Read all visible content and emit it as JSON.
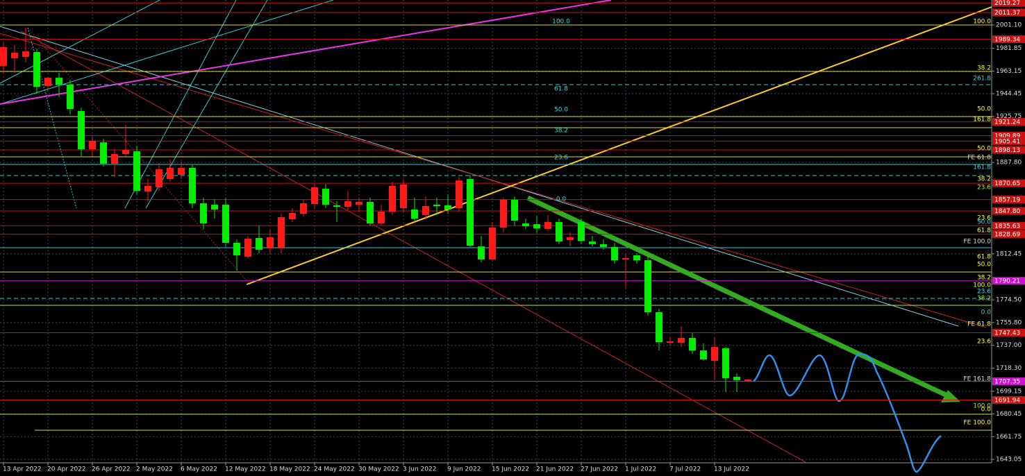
{
  "chart_data": {
    "type": "candlestick",
    "categories": [
      "13 Apr 2022",
      null,
      null,
      null,
      "20 Apr 2022",
      null,
      null,
      null,
      "26 Apr 2022",
      null,
      null,
      null,
      "2 May 2022",
      null,
      null,
      null,
      "6 May 2022",
      null,
      null,
      null,
      "12 May 2022",
      null,
      null,
      null,
      "18 May 2022",
      null,
      null,
      null,
      "24 May 2022",
      null,
      null,
      null,
      "30 May 2022",
      null,
      null,
      null,
      "3 Jun 2022",
      null,
      null,
      null,
      "9 Jun 2022",
      null,
      null,
      null,
      "15 Jun 2022",
      null,
      null,
      null,
      "21 Jun 2022",
      null,
      null,
      null,
      "27 Jun 2022",
      null,
      null,
      null,
      "1 Jul 2022",
      null,
      null,
      null,
      "7 Jul 2022",
      null,
      null,
      null,
      "13 Jul 2022",
      null,
      null,
      null
    ],
    "open": [
      1967.4,
      1973.7,
      1974.8,
      1978.8,
      1950.8,
      1957.6,
      1951.9,
      1930.2,
      1898.7,
      1904.4,
      1886.7,
      1894.7,
      1897.0,
      1863.8,
      1867.3,
      1874.1,
      1877.6,
      1883.3,
      1854.1,
      1853.0,
      1853.0,
      1821.5,
      1810.1,
      1825.5,
      1816.9,
      1817.5,
      1841.0,
      1845.5,
      1853.5,
      1866.1,
      1852.4,
      1851.2,
      1853.0,
      1855.3,
      1837.5,
      1847.2,
      1850.1,
      1849.0,
      1844.4,
      1853.0,
      1852.4,
      1850.1,
      1874.1,
      1818.6,
      1807.8,
      1834.1,
      1857.0,
      1837.5,
      1836.9,
      1832.9,
      1838.7,
      1823.8,
      1838.7,
      1822.6,
      1820.4,
      1818.1,
      1807.8,
      1811.2,
      1807.2,
      1764.3,
      1739.1,
      1739.1,
      1743.1,
      1732.8,
      1724.3,
      1734.6,
      1711.1,
      1707.7
    ],
    "high": [
      1987.4,
      1984.5,
      1998.8,
      1981.7,
      1955.9,
      1961.6,
      1955.9,
      1933.0,
      1910.2,
      1907.3,
      1898.7,
      1918.7,
      1901.6,
      1874.1,
      1887.3,
      1890.1,
      1888.4,
      1885.6,
      1858.7,
      1857.5,
      1858.7,
      1824.4,
      1827.2,
      1835.8,
      1832.9,
      1845.5,
      1850.1,
      1857.0,
      1870.1,
      1870.1,
      1855.8,
      1864.4,
      1858.7,
      1858.7,
      1853.0,
      1871.8,
      1874.1,
      1858.7,
      1859.8,
      1858.7,
      1861.5,
      1875.8,
      1877.6,
      1827.2,
      1838.7,
      1858.7,
      1859.8,
      1841.5,
      1843.2,
      1844.4,
      1841.5,
      1830.1,
      1841.5,
      1827.2,
      1824.4,
      1821.5,
      1812.9,
      1812.9,
      1810.1,
      1767.2,
      1744.3,
      1752.9,
      1747.1,
      1738.6,
      1744.3,
      1735.7,
      1714.0,
      1709.4
    ],
    "low": [
      1961.6,
      1961.6,
      1970.2,
      1944.5,
      1947.3,
      1941.6,
      1927.3,
      1893.0,
      1893.0,
      1884.4,
      1875.8,
      1893.0,
      1861.5,
      1855.8,
      1864.4,
      1871.8,
      1874.1,
      1850.1,
      1832.9,
      1841.5,
      1818.6,
      1798.6,
      1808.9,
      1812.9,
      1812.9,
      1812.9,
      1838.7,
      1843.2,
      1850.1,
      1850.1,
      1838.7,
      1848.4,
      1847.2,
      1835.8,
      1835.8,
      1844.4,
      1847.2,
      1838.7,
      1841.0,
      1844.4,
      1845.5,
      1847.2,
      1818.1,
      1805.5,
      1807.2,
      1830.1,
      1835.8,
      1832.9,
      1830.1,
      1831.2,
      1820.4,
      1818.6,
      1820.4,
      1818.6,
      1815.8,
      1804.3,
      1784.3,
      1804.3,
      1761.5,
      1732.8,
      1736.8,
      1735.7,
      1730.0,
      1724.3,
      1708.3,
      1698.5,
      1698.5,
      1707.1
    ],
    "close": [
      1982.8,
      1978.2,
      1979.4,
      1950.2,
      1957.6,
      1951.9,
      1931.9,
      1898.7,
      1905.6,
      1886.7,
      1894.7,
      1898.1,
      1864.4,
      1868.4,
      1882.1,
      1883.3,
      1883.3,
      1854.1,
      1837.5,
      1849.0,
      1821.5,
      1811.2,
      1824.9,
      1815.8,
      1826.1,
      1842.7,
      1846.1,
      1854.1,
      1867.3,
      1853.0,
      1851.2,
      1855.8,
      1855.3,
      1837.5,
      1847.2,
      1868.4,
      1869.6,
      1841.5,
      1851.8,
      1851.8,
      1849.0,
      1872.9,
      1819.2,
      1807.8,
      1834.1,
      1857.0,
      1839.8,
      1835.2,
      1833.5,
      1838.7,
      1822.6,
      1826.1,
      1823.2,
      1820.4,
      1818.1,
      1807.2,
      1808.9,
      1807.2,
      1764.3,
      1739.7,
      1740.3,
      1743.1,
      1732.8,
      1725.4,
      1735.7,
      1710.0,
      1708.3,
      1708.9
    ],
    "up_color": "#ff1a1a",
    "down_color": "#00ee00",
    "ylim": [
      1629.3,
      2021.7
    ],
    "yticks": [
      {
        "value": 2001.1,
        "label": "2001.10"
      },
      1981.85,
      1963.15,
      1944.45,
      1925.75,
      {
        "value": 1887.8,
        "label": "1887.80"
      },
      1812.45,
      {
        "value": 1774.5,
        "label": "1774.50"
      },
      {
        "value": 1755.8,
        "label": "1755.80"
      },
      {
        "value": 1737,
        "label": "1737.00"
      },
      {
        "value": 1718.3,
        "label": "1718.30"
      },
      1699.15,
      1680.45,
      1661.75,
      1643.05
    ],
    "grid": true,
    "levels": [
      {
        "price": 2019.27,
        "color": "#cc1111"
      },
      {
        "price": 2011.37,
        "color": "#cc1111"
      },
      {
        "price": 1989.34,
        "color": "#cc1111"
      },
      {
        "price": 1921.24,
        "color": "#cc1111"
      },
      {
        "price": 1909.89,
        "color": "#cc1111"
      },
      {
        "price": 1905.41,
        "color": "#cc1111"
      },
      {
        "price": 1898.13,
        "color": "#cc1111"
      },
      {
        "price": 1870.65,
        "color": "#cc1111"
      },
      {
        "price": 1857.19,
        "color": "#cc1111"
      },
      {
        "price": {
          "value": 1847.8,
          "label": "1847.80"
        },
        "color": "#cc1111"
      },
      {
        "price": 1835.63,
        "color": "#cc1111"
      },
      {
        "price": 1828.69,
        "color": "#cc1111"
      },
      {
        "price": 1790.21,
        "color": "#d010d0"
      },
      {
        "price": 1747.43,
        "color": "#cc1111"
      },
      {
        "price": 1707.35,
        "color": "#d010d0"
      },
      {
        "price": 1691.94,
        "color": "#cc1111"
      }
    ],
    "level_labels": [
      {
        "text": "100.0",
        "price": 2001.1,
        "color": "#ffff33"
      },
      {
        "text": "38.2",
        "price": 1962.8,
        "color": "#ffff33"
      },
      {
        "text": "261.8",
        "price": 1954.2,
        "color": "#33dddd"
      },
      {
        "text": "50.0",
        "price": 1929.0,
        "color": "#ffff33"
      },
      {
        "text": "161.8",
        "price": 1920.5,
        "color": "#ffff33"
      },
      {
        "text": "50.0",
        "price": 1896.4,
        "color": "#ffff33"
      },
      {
        "text": "FE 61.8",
        "price": 1889.0,
        "color": "#dddddd"
      },
      {
        "text": "161.8",
        "price": 1881.0,
        "color": "#33dddd"
      },
      {
        "text": "38.2",
        "price": 1871.3,
        "color": "#ffff33"
      },
      {
        "text": "23.6",
        "price": 1864.4,
        "color": "#aaee33"
      },
      {
        "text": "23.6",
        "price": 1839.2,
        "color": "#ffff33"
      },
      {
        "text": "50.0",
        "price": 1835.8,
        "color": "#33dddd"
      },
      {
        "text": "61.8",
        "price": 1828.9,
        "color": "#ffff33"
      },
      {
        "text": "FE 100.0",
        "price": 1819.8,
        "color": "#dddddd"
      },
      {
        "text": "61.8",
        "price": 1807.2,
        "color": "#ffff33"
      },
      {
        "text": "50.0",
        "price": 1800.9,
        "color": "#ffff33"
      },
      {
        "text": "38.2",
        "price": 1790.0,
        "color": "#ffff33"
      },
      {
        "text": "100.0",
        "price": 1783.7,
        "color": "#ffff33"
      },
      {
        "text": "23.6",
        "price": 1778.6,
        "color": "#33dddd"
      },
      {
        "text": "38.2",
        "price": 1772.9,
        "color": "#aaee33"
      },
      {
        "text": "0.0",
        "price": 1761.4,
        "color": "#33dddd"
      },
      {
        "text": "FE 61.8",
        "price": 1751.7,
        "color": "#ffff33"
      },
      {
        "text": "23.6",
        "price": 1737.4,
        "color": "#ffff33"
      },
      {
        "text": "FE 161.8",
        "price": 1706.5,
        "color": "#dddddd"
      },
      {
        "text": "100.0",
        "price": 1684.2,
        "color": "#aaee33"
      },
      {
        "text": "0.0",
        "price": 1681.4,
        "color": "#ffff33"
      },
      {
        "text": "FE 100.0",
        "price": 1670.5,
        "color": "#ffff33"
      }
    ],
    "chart_labels": [
      {
        "text": "100.0",
        "price": 2001.1
      },
      {
        "text": "61.8",
        "price": 1945.6
      },
      {
        "text": "50.0",
        "price": 1928.5
      },
      {
        "text": "38.2",
        "price": 1911.3
      },
      {
        "text": "23.6",
        "price": 1889.0
      },
      {
        "text": "0.0",
        "price": 1854.7
      }
    ]
  }
}
